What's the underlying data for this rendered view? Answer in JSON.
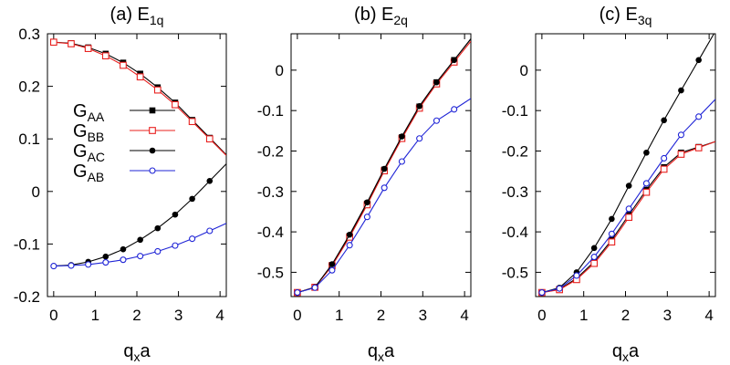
{
  "chart_data": [
    {
      "type": "line",
      "panel": "a",
      "title": {
        "main": "(a) E",
        "sub": "1q"
      },
      "xlabel": {
        "main": "q",
        "sub": "x",
        "tail": "a"
      },
      "xlim": [
        -0.15,
        4.15
      ],
      "ylim": [
        -0.2,
        0.3
      ],
      "xticks": [
        0,
        1,
        2,
        3,
        4
      ],
      "yticks": [
        -0.2,
        -0.1,
        0,
        0.1,
        0.2,
        0.3
      ],
      "ytick_labels": [
        "-0.2",
        "-0.1",
        "0",
        "0.1",
        "0.2",
        "0.3"
      ],
      "x": [
        0,
        0.42,
        0.83,
        1.25,
        1.67,
        2.08,
        2.5,
        2.92,
        3.33,
        3.75
      ],
      "legend": {
        "placement": "center-left"
      },
      "series": [
        {
          "name": "G_AA",
          "label_main": "G",
          "label_sub": "AA",
          "color": "#000000",
          "marker": "filled-square",
          "values": [
            0.284,
            0.282,
            0.274,
            0.262,
            0.245,
            0.224,
            0.198,
            0.169,
            0.136,
            0.102
          ]
        },
        {
          "name": "G_BB",
          "label_main": "G",
          "label_sub": "BB",
          "color": "#e8201e",
          "marker": "open-square",
          "values": [
            0.284,
            0.281,
            0.272,
            0.258,
            0.24,
            0.218,
            0.193,
            0.165,
            0.133,
            0.1
          ]
        },
        {
          "name": "G_AC",
          "label_main": "G",
          "label_sub": "AC",
          "color": "#000000",
          "marker": "filled-circle",
          "values": [
            -0.142,
            -0.14,
            -0.134,
            -0.124,
            -0.11,
            -0.092,
            -0.07,
            -0.044,
            -0.014,
            0.02
          ]
        },
        {
          "name": "G_AB",
          "label_main": "G",
          "label_sub": "AB",
          "color": "#1f24d6",
          "marker": "open-circle",
          "values": [
            -0.142,
            -0.141,
            -0.139,
            -0.135,
            -0.13,
            -0.123,
            -0.114,
            -0.103,
            -0.09,
            -0.075
          ]
        }
      ]
    },
    {
      "type": "line",
      "panel": "b",
      "title": {
        "main": "(b) E",
        "sub": "2q"
      },
      "xlabel": {
        "main": "q",
        "sub": "x",
        "tail": "a"
      },
      "xlim": [
        -0.15,
        4.15
      ],
      "ylim": [
        -0.56,
        0.09
      ],
      "xticks": [
        0,
        1,
        2,
        3,
        4
      ],
      "yticks": [
        -0.5,
        -0.4,
        -0.3,
        -0.2,
        -0.1,
        0
      ],
      "ytick_labels": [
        "-0.5",
        "-0.4",
        "-0.3",
        "-0.2",
        "-0.1",
        "0"
      ],
      "x": [
        0,
        0.42,
        0.83,
        1.25,
        1.67,
        2.08,
        2.5,
        2.92,
        3.33,
        3.75
      ],
      "series": [
        {
          "name": "G_AA",
          "color": "#000000",
          "marker": "filled-square",
          "values": [
            -0.55,
            -0.537,
            -0.482,
            -0.41,
            -0.33,
            -0.246,
            -0.166,
            -0.09,
            -0.03,
            0.025
          ]
        },
        {
          "name": "G_BB",
          "color": "#e8201e",
          "marker": "open-square",
          "values": [
            -0.55,
            -0.537,
            -0.484,
            -0.413,
            -0.333,
            -0.249,
            -0.169,
            -0.094,
            -0.034,
            0.02
          ]
        },
        {
          "name": "G_AC",
          "color": "#000000",
          "marker": "filled-circle",
          "values": [
            -0.55,
            -0.537,
            -0.48,
            -0.407,
            -0.327,
            -0.244,
            -0.164,
            -0.089,
            -0.03,
            0.025
          ]
        },
        {
          "name": "G_AB",
          "color": "#1f24d6",
          "marker": "open-circle",
          "values": [
            -0.55,
            -0.538,
            -0.495,
            -0.433,
            -0.363,
            -0.291,
            -0.226,
            -0.169,
            -0.125,
            -0.097
          ]
        }
      ]
    },
    {
      "type": "line",
      "panel": "c",
      "title": {
        "main": "(c) E",
        "sub": "3q"
      },
      "xlabel": {
        "main": "q",
        "sub": "x",
        "tail": "a"
      },
      "xlim": [
        -0.15,
        4.15
      ],
      "ylim": [
        -0.56,
        0.09
      ],
      "xticks": [
        0,
        1,
        2,
        3,
        4
      ],
      "yticks": [
        -0.5,
        -0.4,
        -0.3,
        -0.2,
        -0.1,
        0
      ],
      "ytick_labels": [
        "-0.5",
        "-0.4",
        "-0.3",
        "-0.2",
        "-0.1",
        "0"
      ],
      "x": [
        0,
        0.42,
        0.83,
        1.25,
        1.67,
        2.08,
        2.5,
        2.92,
        3.33,
        3.75
      ],
      "series": [
        {
          "name": "G_AA",
          "color": "#000000",
          "marker": "filled-square",
          "values": [
            -0.55,
            -0.542,
            -0.515,
            -0.474,
            -0.42,
            -0.358,
            -0.296,
            -0.24,
            -0.204,
            -0.19
          ]
        },
        {
          "name": "G_BB",
          "color": "#e8201e",
          "marker": "open-square",
          "values": [
            -0.55,
            -0.543,
            -0.518,
            -0.478,
            -0.425,
            -0.364,
            -0.302,
            -0.245,
            -0.208,
            -0.192
          ]
        },
        {
          "name": "G_AC",
          "color": "#000000",
          "marker": "filled-circle",
          "values": [
            -0.55,
            -0.538,
            -0.5,
            -0.44,
            -0.368,
            -0.286,
            -0.204,
            -0.124,
            -0.05,
            0.025
          ]
        },
        {
          "name": "G_AB",
          "color": "#1f24d6",
          "marker": "open-circle",
          "values": [
            -0.55,
            -0.54,
            -0.508,
            -0.462,
            -0.405,
            -0.343,
            -0.28,
            -0.218,
            -0.16,
            -0.115
          ]
        }
      ]
    }
  ]
}
